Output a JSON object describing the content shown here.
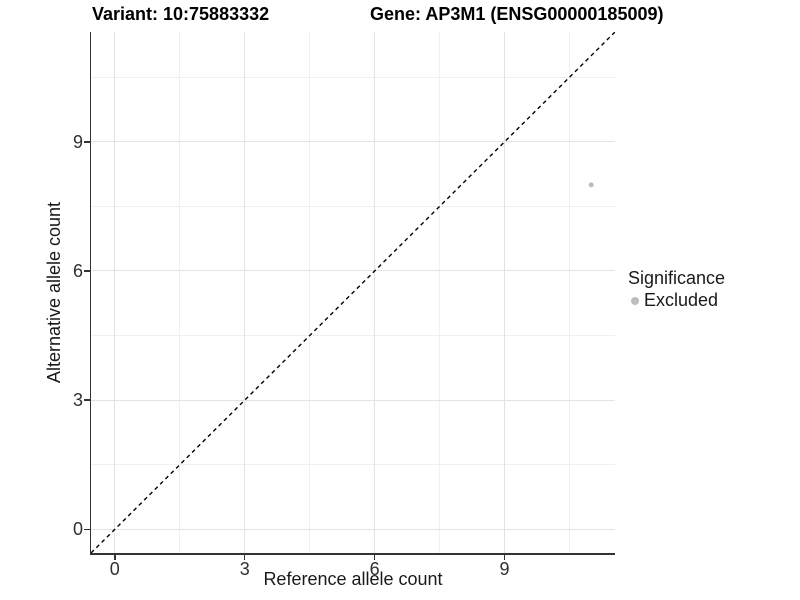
{
  "chart_data": {
    "type": "scatter",
    "title_left": "Variant: 10:75883332",
    "title_right": "Gene: AP3M1 (ENSG00000185009)",
    "xlabel": "Reference allele count",
    "ylabel": "Alternative allele count",
    "xlim": [
      -0.55,
      11.55
    ],
    "ylim": [
      -0.55,
      11.55
    ],
    "x_major_ticks": [
      0,
      3,
      6,
      9
    ],
    "y_major_ticks": [
      0,
      3,
      6,
      9
    ],
    "x_minor_gridlines": [
      1.5,
      4.5,
      7.5,
      10.5
    ],
    "y_minor_gridlines": [
      1.5,
      4.5,
      7.5,
      10.5
    ],
    "grid": "major and minor, light gray",
    "points": [
      {
        "x": 11,
        "y": 8,
        "significance": "Excluded"
      }
    ],
    "reference_line": {
      "kind": "identity y=x",
      "slope": 1,
      "intercept": 0,
      "style": "dashed",
      "color": "#000000"
    },
    "legend": {
      "title": "Significance",
      "position": "right",
      "entries": [
        {
          "label": "Excluded",
          "color": "#bdbdbd"
        }
      ]
    }
  },
  "colors": {
    "background": "#ffffff",
    "grid_major": "#e3e3e3",
    "grid_minor": "#f0f0f0",
    "axis_line": "#333333",
    "tick_label": "#303030",
    "point": "#bdbdbd",
    "title": "#000000"
  }
}
